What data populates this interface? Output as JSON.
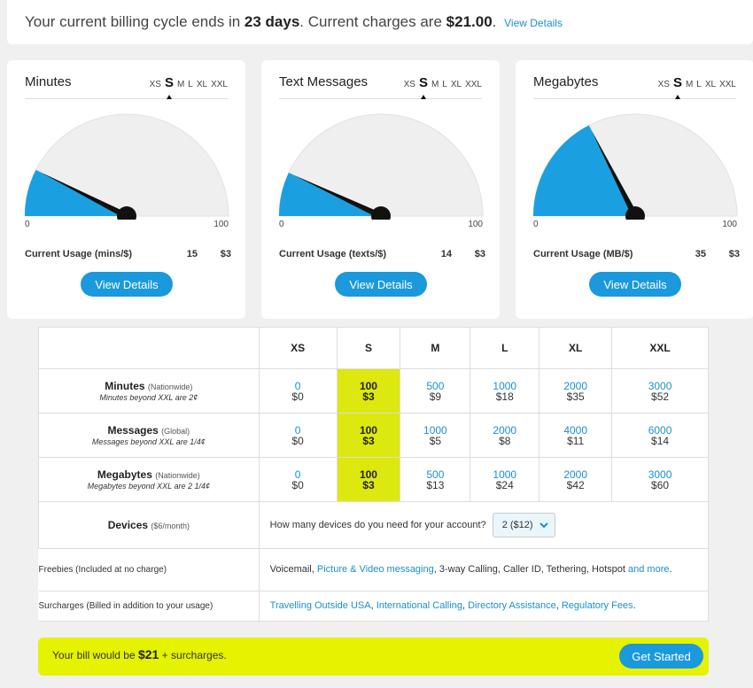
{
  "banner": {
    "prefix": "Your current billing cycle ends in",
    "days": "23 days",
    "middle": ". Current charges are",
    "amount": "$21.00",
    "suffix": ".",
    "link": "View Details"
  },
  "cards": [
    {
      "title": "Minutes",
      "sizes": [
        "XS",
        "S",
        "M",
        "L",
        "XL",
        "XXL"
      ],
      "selected": "S",
      "min": "0",
      "max": "100",
      "usage_label": "Current Usage (mins/$)",
      "usage_value": "15",
      "usage_cost": "$3",
      "usage_fraction": 0.15,
      "button": "View Details"
    },
    {
      "title": "Text Messages",
      "sizes": [
        "XS",
        "S",
        "M",
        "L",
        "XL",
        "XXL"
      ],
      "selected": "S",
      "min": "0",
      "max": "100",
      "usage_label": "Current Usage (texts/$)",
      "usage_value": "14",
      "usage_cost": "$3",
      "usage_fraction": 0.14,
      "button": "View Details"
    },
    {
      "title": "Megabytes",
      "sizes": [
        "XS",
        "S",
        "M",
        "L",
        "XL",
        "XXL"
      ],
      "selected": "S",
      "min": "0",
      "max": "100",
      "usage_label": "Current Usage (MB/$)",
      "usage_value": "35",
      "usage_cost": "$3",
      "usage_fraction": 0.35,
      "button": "View Details"
    }
  ],
  "gauge_colors": {
    "fill": "#1aa0e0",
    "track": "#efefef",
    "needle": "#111111"
  },
  "table": {
    "columns": [
      "XS",
      "S",
      "M",
      "L",
      "XL",
      "XXL"
    ],
    "highlight_column": "S",
    "rows": [
      {
        "title": "Minutes",
        "note": "(Nationwide)",
        "sub": "Minutes beyond XXL are 2¢",
        "cells": [
          [
            "0",
            "$0"
          ],
          [
            "100",
            "$3"
          ],
          [
            "500",
            "$9"
          ],
          [
            "1000",
            "$18"
          ],
          [
            "2000",
            "$35"
          ],
          [
            "3000",
            "$52"
          ]
        ]
      },
      {
        "title": "Messages",
        "note": "(Global)",
        "sub": "Messages beyond XXL are 1/4¢",
        "cells": [
          [
            "0",
            "$0"
          ],
          [
            "100",
            "$3"
          ],
          [
            "1000",
            "$5"
          ],
          [
            "2000",
            "$8"
          ],
          [
            "4000",
            "$11"
          ],
          [
            "6000",
            "$14"
          ]
        ]
      },
      {
        "title": "Megabytes",
        "note": "(Nationwide)",
        "sub": "Megabytes beyond XXL are 2 1/4¢",
        "cells": [
          [
            "0",
            "$0"
          ],
          [
            "100",
            "$3"
          ],
          [
            "500",
            "$13"
          ],
          [
            "1000",
            "$24"
          ],
          [
            "2000",
            "$42"
          ],
          [
            "3000",
            "$60"
          ]
        ]
      }
    ],
    "devices": {
      "title": "Devices",
      "note": "($6/month)",
      "question": "How many devices do you need for your account?",
      "selected": "2 ($12)"
    },
    "freebies": {
      "label": "Freebies (Included at no charge)",
      "t1": "Voicemail, ",
      "l1": "Picture & Video messaging",
      "t2": ", 3-way Calling, Caller ID, Tethering, Hotspot ",
      "l2": "and more",
      "t3": "."
    },
    "surcharges": {
      "label": "Surcharges (Billed in addition to your usage)",
      "links": [
        "Travelling Outside USA",
        "International Calling",
        "Directory Assistance",
        "Regulatory Fees"
      ],
      "sep": ", ",
      "end": "."
    }
  },
  "bill": {
    "prefix": "Your bill would be",
    "amount": "$21",
    "suffix": "+ surcharges.",
    "button": "Get Started",
    "bar_color": "#e5f200"
  }
}
